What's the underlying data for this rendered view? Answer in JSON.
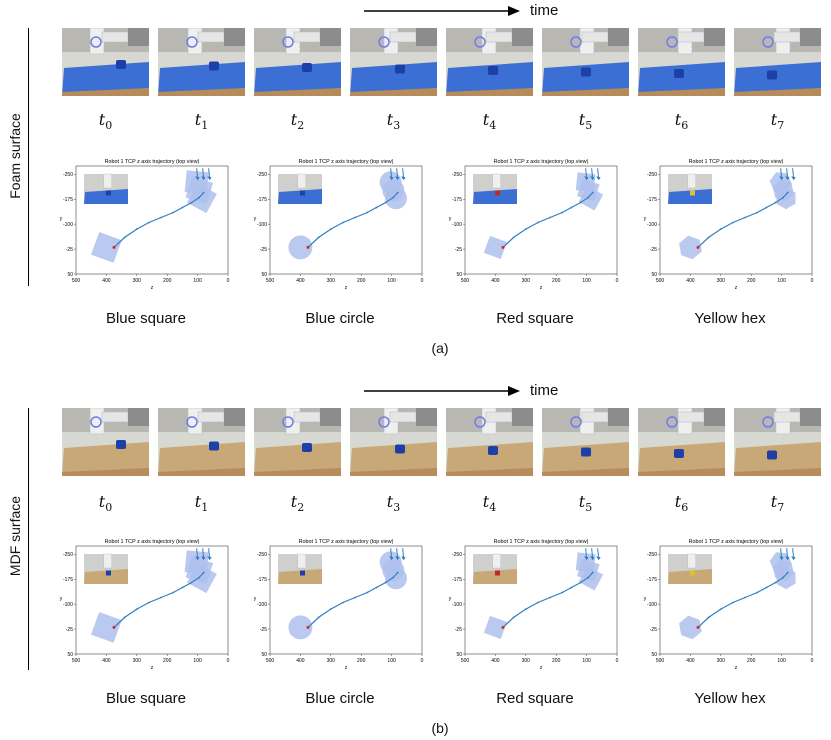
{
  "time_label": "time",
  "panels": [
    {
      "surface_label": "Foam surface",
      "caption": "(a)",
      "surface_color": "#3b6fd4",
      "time_steps": [
        {
          "base": "t",
          "sub": "0"
        },
        {
          "base": "t",
          "sub": "1"
        },
        {
          "base": "t",
          "sub": "2"
        },
        {
          "base": "t",
          "sub": "3"
        },
        {
          "base": "t",
          "sub": "4"
        },
        {
          "base": "t",
          "sub": "5"
        },
        {
          "base": "t",
          "sub": "6"
        },
        {
          "base": "t",
          "sub": "7"
        }
      ],
      "objects": [
        "Blue square",
        "Blue circle",
        "Red square",
        "Yellow hex"
      ]
    },
    {
      "surface_label": "MDF surface",
      "caption": "(b)",
      "surface_color": "#c9a877",
      "time_steps": [
        {
          "base": "t",
          "sub": "0"
        },
        {
          "base": "t",
          "sub": "1"
        },
        {
          "base": "t",
          "sub": "2"
        },
        {
          "base": "t",
          "sub": "3"
        },
        {
          "base": "t",
          "sub": "4"
        },
        {
          "base": "t",
          "sub": "5"
        },
        {
          "base": "t",
          "sub": "6"
        },
        {
          "base": "t",
          "sub": "7"
        }
      ],
      "objects": [
        "Blue square",
        "Blue circle",
        "Red square",
        "Yellow hex"
      ]
    }
  ],
  "plot_common": {
    "title": "Robot 1 TCP z axis trajectory (top view)",
    "xlabel": "z",
    "ylabel": "y",
    "xticks": [
      "500",
      "400",
      "300",
      "200",
      "100",
      "0"
    ],
    "yticks": [
      "-250",
      "-175",
      "-100",
      "-25",
      "50"
    ]
  },
  "colors": {
    "trajectory": "#2f7fc1",
    "shape_fill": "#aec0ec",
    "start_marker": "#d62728"
  },
  "chart_data": {
    "type": "line",
    "title": "Robot 1 TCP z axis trajectory (top view)",
    "xlabel": "z",
    "ylabel": "y",
    "xlim": [
      500,
      0
    ],
    "ylim": [
      50,
      -250
    ],
    "series": [
      {
        "x": [
          375,
          340,
          300,
          260,
          220,
          180,
          150,
          120,
          95,
          80
        ],
        "y": [
          -30,
          -60,
          -85,
          -105,
          -120,
          -135,
          -150,
          -165,
          -180,
          -195
        ]
      }
    ],
    "shape_positions_zy": {
      "start": [
        400,
        -30
      ],
      "end": [
        90,
        -190
      ]
    }
  }
}
